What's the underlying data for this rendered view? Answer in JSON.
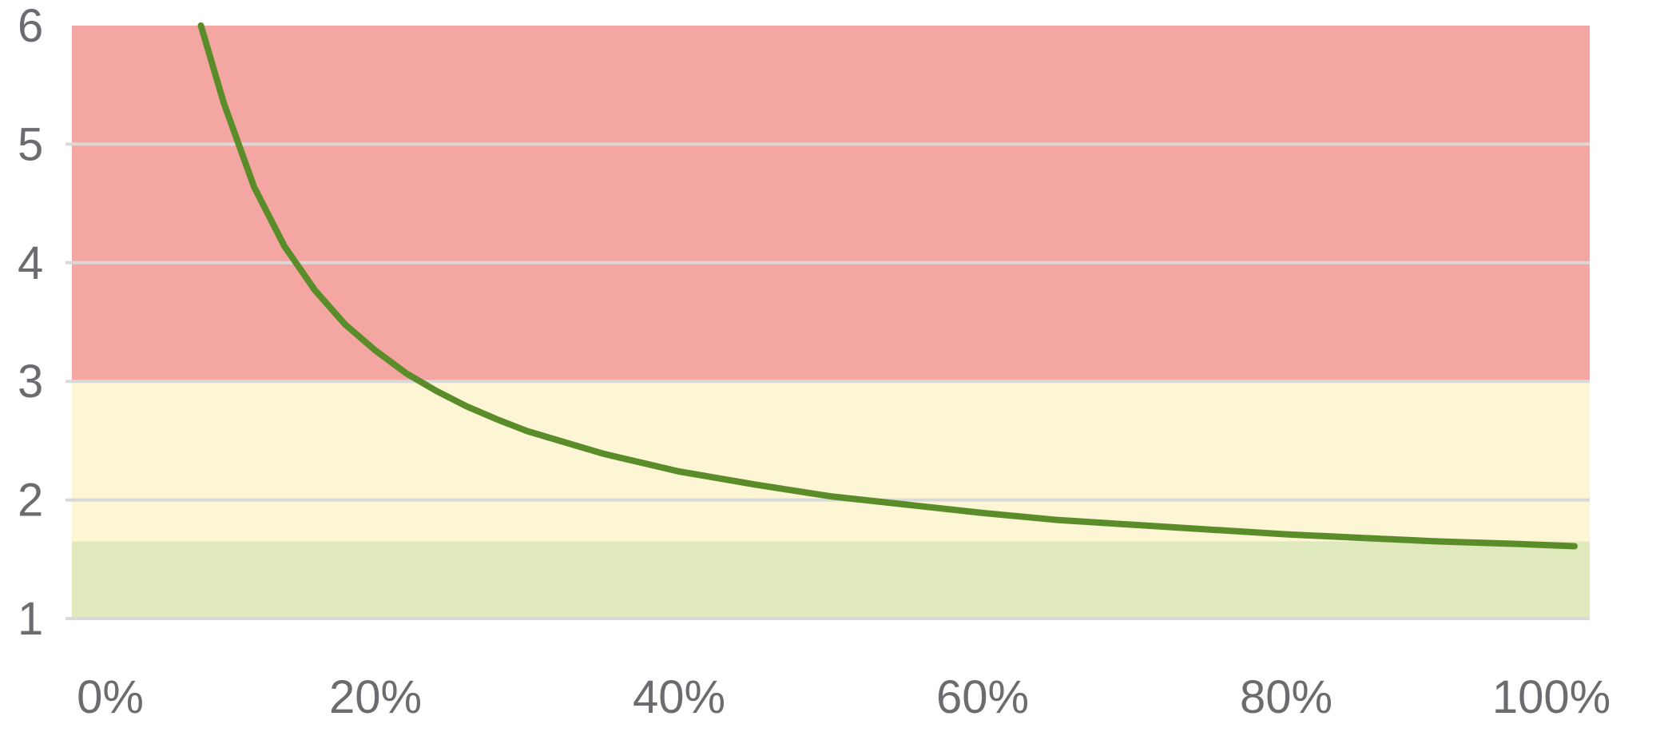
{
  "chart_data": {
    "type": "line",
    "title": "",
    "xlabel": "",
    "ylabel": "",
    "xlim": [
      0,
      100
    ],
    "ylim": [
      1,
      6
    ],
    "grid": true,
    "legend": "none",
    "x_ticks": [
      {
        "value": 0,
        "label": "0%"
      },
      {
        "value": 20,
        "label": "20%"
      },
      {
        "value": 40,
        "label": "40%"
      },
      {
        "value": 60,
        "label": "60%"
      },
      {
        "value": 80,
        "label": "80%"
      },
      {
        "value": 100,
        "label": "100%"
      }
    ],
    "y_ticks": [
      {
        "value": 1,
        "label": "1"
      },
      {
        "value": 2,
        "label": "2"
      },
      {
        "value": 3,
        "label": "3"
      },
      {
        "value": 4,
        "label": "4"
      },
      {
        "value": 5,
        "label": "5"
      },
      {
        "value": 6,
        "label": "6"
      }
    ],
    "bands": [
      {
        "y0": 3,
        "y1": 6,
        "color": "#f4a6a2"
      },
      {
        "y0": 1.65,
        "y1": 3,
        "color": "#fdf6d5"
      },
      {
        "y0": 1,
        "y1": 1.65,
        "color": "#dfe9bc"
      }
    ],
    "series": [
      {
        "color": "#5b8c2a",
        "x": [
          8.5,
          10,
          12,
          14,
          16,
          18,
          20,
          22,
          24,
          26,
          28,
          30,
          35,
          40,
          45,
          50,
          55,
          60,
          65,
          70,
          75,
          80,
          85,
          90,
          95,
          99
        ],
        "y": [
          6.0,
          5.35,
          4.64,
          4.14,
          3.77,
          3.48,
          3.26,
          3.07,
          2.92,
          2.79,
          2.68,
          2.58,
          2.39,
          2.24,
          2.13,
          2.03,
          1.96,
          1.89,
          1.83,
          1.79,
          1.75,
          1.71,
          1.68,
          1.65,
          1.63,
          1.61
        ]
      }
    ]
  }
}
